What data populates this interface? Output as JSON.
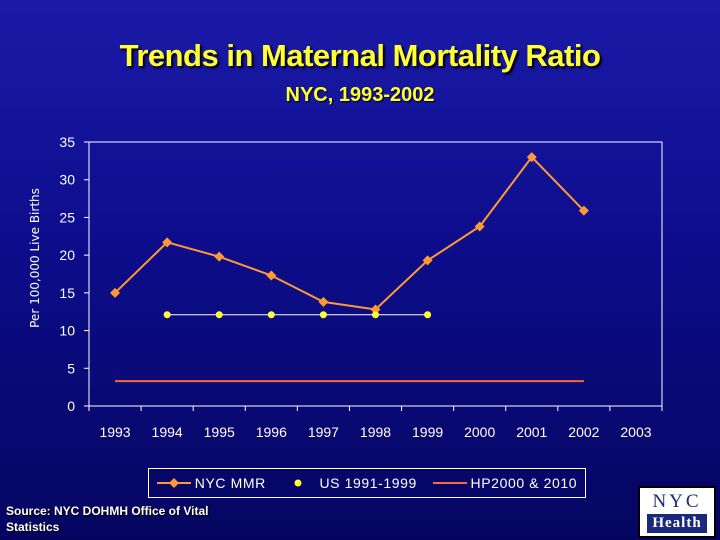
{
  "chart_data": {
    "type": "line",
    "title": "Trends in Maternal Mortality Ratio",
    "subtitle": "NYC, 1993-2002",
    "xlabel": "",
    "ylabel": "Per 100,000 Live Births",
    "categories": [
      "1993",
      "1994",
      "1995",
      "1996",
      "1997",
      "1998",
      "1999",
      "2000",
      "2001",
      "2002",
      "2003"
    ],
    "ylim": [
      0,
      35
    ],
    "yticks": [
      0,
      5,
      10,
      15,
      20,
      25,
      30,
      35
    ],
    "grid": false,
    "legend_position": "bottom",
    "series": [
      {
        "name": "NYC MMR",
        "color": "#ff9933",
        "marker": "diamond",
        "values": [
          15,
          21.7,
          19.8,
          17.3,
          13.8,
          12.8,
          19.3,
          23.8,
          33,
          25.9,
          null
        ]
      },
      {
        "name": "US 1991-1999",
        "color": "#ffff33",
        "marker": "circle",
        "values": [
          null,
          12.1,
          12.1,
          12.1,
          12.1,
          12.1,
          12.1,
          null,
          null,
          null,
          null
        ]
      },
      {
        "name": "HP2000 & 2010",
        "color": "#ff6633",
        "marker": "none",
        "values": [
          3.3,
          3.3,
          3.3,
          3.3,
          3.3,
          3.3,
          3.3,
          3.3,
          3.3,
          3.3,
          null
        ]
      }
    ]
  },
  "source": {
    "line1": "Source: NYC DOHMH Office of Vital",
    "line2": "Statistics"
  },
  "logo": {
    "top": "NYC",
    "bottom": "Health"
  },
  "colors": {
    "title": "#ffff33",
    "axis": "#ffffff",
    "nyc": "#ff9933",
    "us": "#ffff33",
    "hp": "#ff6633"
  }
}
